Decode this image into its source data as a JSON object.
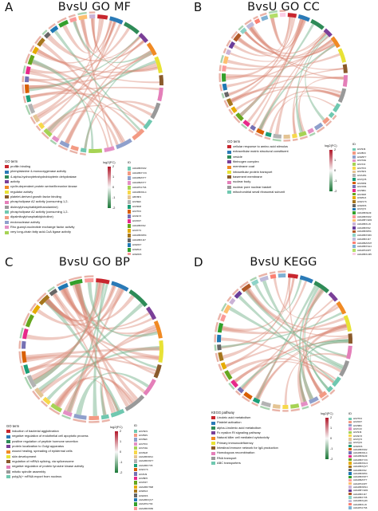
{
  "panels": {
    "a": {
      "letter": "A",
      "title": "BvsU  GO MF",
      "legend_title": "GO term",
      "fc_title": "log2(FC)",
      "fc_ticks": [
        "2",
        "1",
        "0",
        "-1",
        "-2"
      ],
      "id_title": "ID",
      "terms": [
        {
          "label": "profilin binding",
          "color": "#c8262e"
        },
        {
          "label": "phenylalanine 4-monooxygenase activity",
          "color": "#2a7ab7"
        },
        {
          "label": "4-alpha-hydroxytetrahydrobiopterin dehydratase",
          "color": "#2e8b57"
        },
        {
          "label": "activity",
          "color": "#7a3f98"
        },
        {
          "label": "cyclin-dependent protein serine/threonine kinase",
          "color": "#f08a24"
        },
        {
          "label": "regulator activity",
          "color": "#e8e235"
        },
        {
          "label": "platelet-derived growth factor binding",
          "color": "#8a5a2b"
        },
        {
          "label": "phospholipase A2 activity (consuming 1,2-",
          "color": "#e47fb9"
        },
        {
          "label": "dioleoylphosphatidylethanolamine)",
          "color": "#999999"
        },
        {
          "label": "phospholipase A2 activity (consuming 1,2-",
          "color": "#6fc8b0"
        },
        {
          "label": "dipalmitoylphosphatidylcholine)",
          "color": "#f39a83"
        },
        {
          "label": "endonuclease activity",
          "color": "#8fa0cc"
        },
        {
          "label": "Rho guanyl-nucleotide exchange factor activity",
          "color": "#e48fc4"
        },
        {
          "label": "very long-chain fatty acid-CoA ligase activity",
          "color": "#a6d354"
        }
      ],
      "ids": [
        {
          "label": "A0A286XN02",
          "color": "#6fc8b0"
        },
        {
          "label": "A0A286XYV9",
          "color": "#f39a83"
        },
        {
          "label": "A0A286ZVT7",
          "color": "#8fa0cc"
        },
        {
          "label": "A0A286ZVT7",
          "color": "#e48fc4"
        },
        {
          "label": "A0A287A7S6",
          "color": "#a6d354"
        },
        {
          "label": "A0A286XDL4",
          "color": "#f7d84a"
        },
        {
          "label": "HBV8F9",
          "color": "#e4c494"
        },
        {
          "label": "H0V9E6",
          "color": "#b3b3b3"
        },
        {
          "label": "H0V9D8",
          "color": "#1b9e77"
        },
        {
          "label": "H0VTK6",
          "color": "#d95f02"
        },
        {
          "label": "H0VEY6",
          "color": "#7570b3"
        },
        {
          "label": "H0VR37",
          "color": "#e7298a"
        },
        {
          "label": "A0A286XW2",
          "color": "#66a61e"
        },
        {
          "label": "H0VKT3",
          "color": "#e6ab02"
        },
        {
          "label": "A0A286XR54",
          "color": "#a6761d"
        },
        {
          "label": "A0A286XJ27",
          "color": "#666666"
        },
        {
          "label": "H0W2F7",
          "color": "#1f78b4"
        },
        {
          "label": "H0W0L6",
          "color": "#33a02c"
        },
        {
          "label": "H0W2F6",
          "color": "#fb9a99"
        },
        {
          "label": "H0VKF3",
          "color": "#fdbf6f"
        },
        {
          "label": "H0VSF9",
          "color": "#cab2d6"
        }
      ]
    },
    "b": {
      "letter": "B",
      "title": "BvsU  GO CC",
      "legend_title": "GO term",
      "fc_title": "log2(FC)",
      "fc_ticks": [
        "2",
        "1",
        "0",
        "-1",
        "-2"
      ],
      "id_title": "ID",
      "terms": [
        {
          "label": "cellular response to amino acid stimulus",
          "color": "#c8262e"
        },
        {
          "label": "extracellular matrix structural constituent",
          "color": "#2a7ab7"
        },
        {
          "label": "vesicle",
          "color": "#2e8b57"
        },
        {
          "label": "fibrinogen complex",
          "color": "#7a3f98"
        },
        {
          "label": "membrane coat",
          "color": "#f08a24"
        },
        {
          "label": "intracellular protein transport",
          "color": "#e8e235"
        },
        {
          "label": "basement membrane",
          "color": "#8a5a2b"
        },
        {
          "label": "nuclear body",
          "color": "#e47fb9"
        },
        {
          "label": "nuclear pore nuclear basket",
          "color": "#999999"
        },
        {
          "label": "mitochondrial small ribosomal subunit",
          "color": "#6fc8b0"
        }
      ],
      "ids": [
        {
          "label": "H0V9J9",
          "color": "#6fc8b0"
        },
        {
          "label": "H0V8F9",
          "color": "#f39a83"
        },
        {
          "label": "H0W9T7",
          "color": "#8fa0cc"
        },
        {
          "label": "H0VX4H",
          "color": "#e48fc4"
        },
        {
          "label": "H0VJ13",
          "color": "#a6d354"
        },
        {
          "label": "H0VTK6",
          "color": "#f7d84a"
        },
        {
          "label": "H0VSF9",
          "color": "#e4c494"
        },
        {
          "label": "H0VH6S",
          "color": "#b3b3b3"
        },
        {
          "label": "H0VQV6",
          "color": "#1b9e77"
        },
        {
          "label": "H0VM09",
          "color": "#d95f02"
        },
        {
          "label": "H0VJW4",
          "color": "#7570b3"
        },
        {
          "label": "H0V9B4",
          "color": "#e7298a"
        },
        {
          "label": "H0V4R8",
          "color": "#66a61e"
        },
        {
          "label": "H0W0L6",
          "color": "#e6ab02"
        },
        {
          "label": "H0W1Y6",
          "color": "#a6761d"
        },
        {
          "label": "H0W2F6",
          "color": "#666666"
        },
        {
          "label": "H0VQ72",
          "color": "#1f78b4"
        },
        {
          "label": "A0A286XE49",
          "color": "#33a02c"
        },
        {
          "label": "A0A286XN02",
          "color": "#fb9a99"
        },
        {
          "label": "A0A286Y3W4",
          "color": "#fdbf6f"
        },
        {
          "label": "A0A286XLJ6",
          "color": "#cab2d6"
        },
        {
          "label": "A0A286XW2",
          "color": "#6a3d9a"
        },
        {
          "label": "A0A286XR54",
          "color": "#b15928"
        },
        {
          "label": "A0A286XVR6",
          "color": "#8dd3c7"
        },
        {
          "label": "A0A286XJ27",
          "color": "#bebada"
        },
        {
          "label": "A0A286ZUM7",
          "color": "#fb8072"
        },
        {
          "label": "A0A286XVH4",
          "color": "#80b1d3"
        },
        {
          "label": "A0A287A6P7",
          "color": "#b3de69"
        },
        {
          "label": "A0A286XLM5",
          "color": "#fccde5"
        }
      ]
    },
    "c": {
      "letter": "C",
      "title": "BvsU GO BP",
      "legend_title": "GO term",
      "fc_title": "log2(FC)",
      "fc_ticks": [
        "2",
        "1",
        "0",
        "-1",
        "-2"
      ],
      "id_title": "ID",
      "terms": [
        {
          "label": "induction of bacterial agglutination",
          "color": "#c8262e"
        },
        {
          "label": "negative regulation of endothelial cell apoptotic process",
          "color": "#2a7ab7"
        },
        {
          "label": "positive regulation of peptide hormone secretion",
          "color": "#2e8b57"
        },
        {
          "label": "protein localization to Golgi apparatus",
          "color": "#7a3f98"
        },
        {
          "label": "wound healing, spreading of epidermal cells",
          "color": "#f08a24"
        },
        {
          "label": "skin development",
          "color": "#e8e235"
        },
        {
          "label": "regulation of mRNA splicing, via spliceosome",
          "color": "#8a5a2b"
        },
        {
          "label": "negative regulation of protein tyrosine kinase activity",
          "color": "#e47fb9"
        },
        {
          "label": "mitotic spindle assembly",
          "color": "#999999"
        },
        {
          "label": "poly(A)+ mRNA export from nucleus",
          "color": "#6fc8b0"
        }
      ],
      "ids": [
        {
          "label": "H0VSF9",
          "color": "#6fc8b0"
        },
        {
          "label": "H0VB4S",
          "color": "#f39a83"
        },
        {
          "label": "H0V9E6",
          "color": "#8fa0cc"
        },
        {
          "label": "H0VTK6",
          "color": "#e48fc4"
        },
        {
          "label": "H0VX4H",
          "color": "#a6d354"
        },
        {
          "label": "H0V9H8",
          "color": "#f7d84a"
        },
        {
          "label": "A0A286XRS4",
          "color": "#e4c494"
        },
        {
          "label": "A0A286XWT7",
          "color": "#b3b3b3"
        },
        {
          "label": "A0A286X7X5",
          "color": "#1b9e77"
        },
        {
          "label": "H0W1Y6",
          "color": "#d95f02"
        },
        {
          "label": "H0V9J9",
          "color": "#7570b3"
        },
        {
          "label": "H0VBP6",
          "color": "#e7298a"
        },
        {
          "label": "H0VR37",
          "color": "#66a61e"
        },
        {
          "label": "A0A286XTM8",
          "color": "#e6ab02"
        },
        {
          "label": "H0W0L6",
          "color": "#a6761d"
        },
        {
          "label": "H0W2F6",
          "color": "#666666"
        },
        {
          "label": "A0A286XQV7",
          "color": "#1f78b4"
        },
        {
          "label": "A0A287A7S6",
          "color": "#33a02c"
        },
        {
          "label": "A0A286XW50",
          "color": "#fb9a99"
        }
      ]
    },
    "d": {
      "letter": "D",
      "title": "BvsU  KEGG",
      "legend_title": "KEGG pathway",
      "fc_title": "log2(FC)",
      "fc_ticks": [
        "2",
        "1",
        "0",
        "-1",
        "-2"
      ],
      "id_title": "ID",
      "terms": [
        {
          "label": "Linoleic acid metabolism",
          "color": "#c8262e"
        },
        {
          "label": "Platelet activation",
          "color": "#2a7ab7"
        },
        {
          "label": "alpha-Linolenic acid metabolism",
          "color": "#2e8b57"
        },
        {
          "label": "Fc epsilon RI signaling pathway",
          "color": "#7a3f98"
        },
        {
          "label": "Natural killer cell mediated cytotoxicity",
          "color": "#f08a24"
        },
        {
          "label": "Primary immunodeficiency",
          "color": "#e8e235"
        },
        {
          "label": "Intestinal immune network for IgA production",
          "color": "#8a5a2b"
        },
        {
          "label": "Homologous recombination",
          "color": "#e47fb9"
        },
        {
          "label": "RNA transport",
          "color": "#999999"
        },
        {
          "label": "ABC transporters",
          "color": "#6fc8b0"
        }
      ],
      "ids": [
        {
          "label": "H0VTK6",
          "color": "#6fc8b0"
        },
        {
          "label": "H0VR37",
          "color": "#f39a83"
        },
        {
          "label": "H0V9B4",
          "color": "#8fa0cc"
        },
        {
          "label": "H0VCJ3",
          "color": "#e48fc4"
        },
        {
          "label": "H0V9J9",
          "color": "#a6d354"
        },
        {
          "label": "H0VEY6",
          "color": "#f7d84a"
        },
        {
          "label": "H0VQ72",
          "color": "#e4c494"
        },
        {
          "label": "H0VQ31",
          "color": "#b3b3b3"
        },
        {
          "label": "H0W2F6",
          "color": "#1b9e77"
        },
        {
          "label": "A0A286XN02",
          "color": "#d95f02"
        },
        {
          "label": "A0A286XDL4",
          "color": "#7570b3"
        },
        {
          "label": "A0A286XE49",
          "color": "#e7298a"
        },
        {
          "label": "A0A286XYV9",
          "color": "#66a61e"
        },
        {
          "label": "A0A286XNU4",
          "color": "#e6ab02"
        },
        {
          "label": "A0A286XQV7",
          "color": "#a6761d"
        },
        {
          "label": "A0A286XW2",
          "color": "#666666"
        },
        {
          "label": "A0A286XR54",
          "color": "#1f78b4"
        },
        {
          "label": "A0A286XWT7",
          "color": "#33a02c"
        },
        {
          "label": "A0A286ZVT7",
          "color": "#fb9a99"
        },
        {
          "label": "A0A287A6P7",
          "color": "#fdbf6f"
        },
        {
          "label": "A0A286XRS4",
          "color": "#cab2d6"
        },
        {
          "label": "A0A286Y3W4",
          "color": "#6a3d9a"
        },
        {
          "label": "A0A286XJ27",
          "color": "#b15928"
        },
        {
          "label": "A0A286X7X5",
          "color": "#8dd3c7"
        },
        {
          "label": "A0A286XQ46",
          "color": "#bebada"
        },
        {
          "label": "A0A286XLJ6",
          "color": "#fb8072"
        },
        {
          "label": "A0A287A7S6",
          "color": "#80b1d3"
        }
      ]
    }
  },
  "colors": {
    "chord_up": "#d9826f",
    "chord_down": "#79b690",
    "fc_high": "#b2182b",
    "fc_mid": "#f7f7f7",
    "fc_low": "#1b7837"
  }
}
